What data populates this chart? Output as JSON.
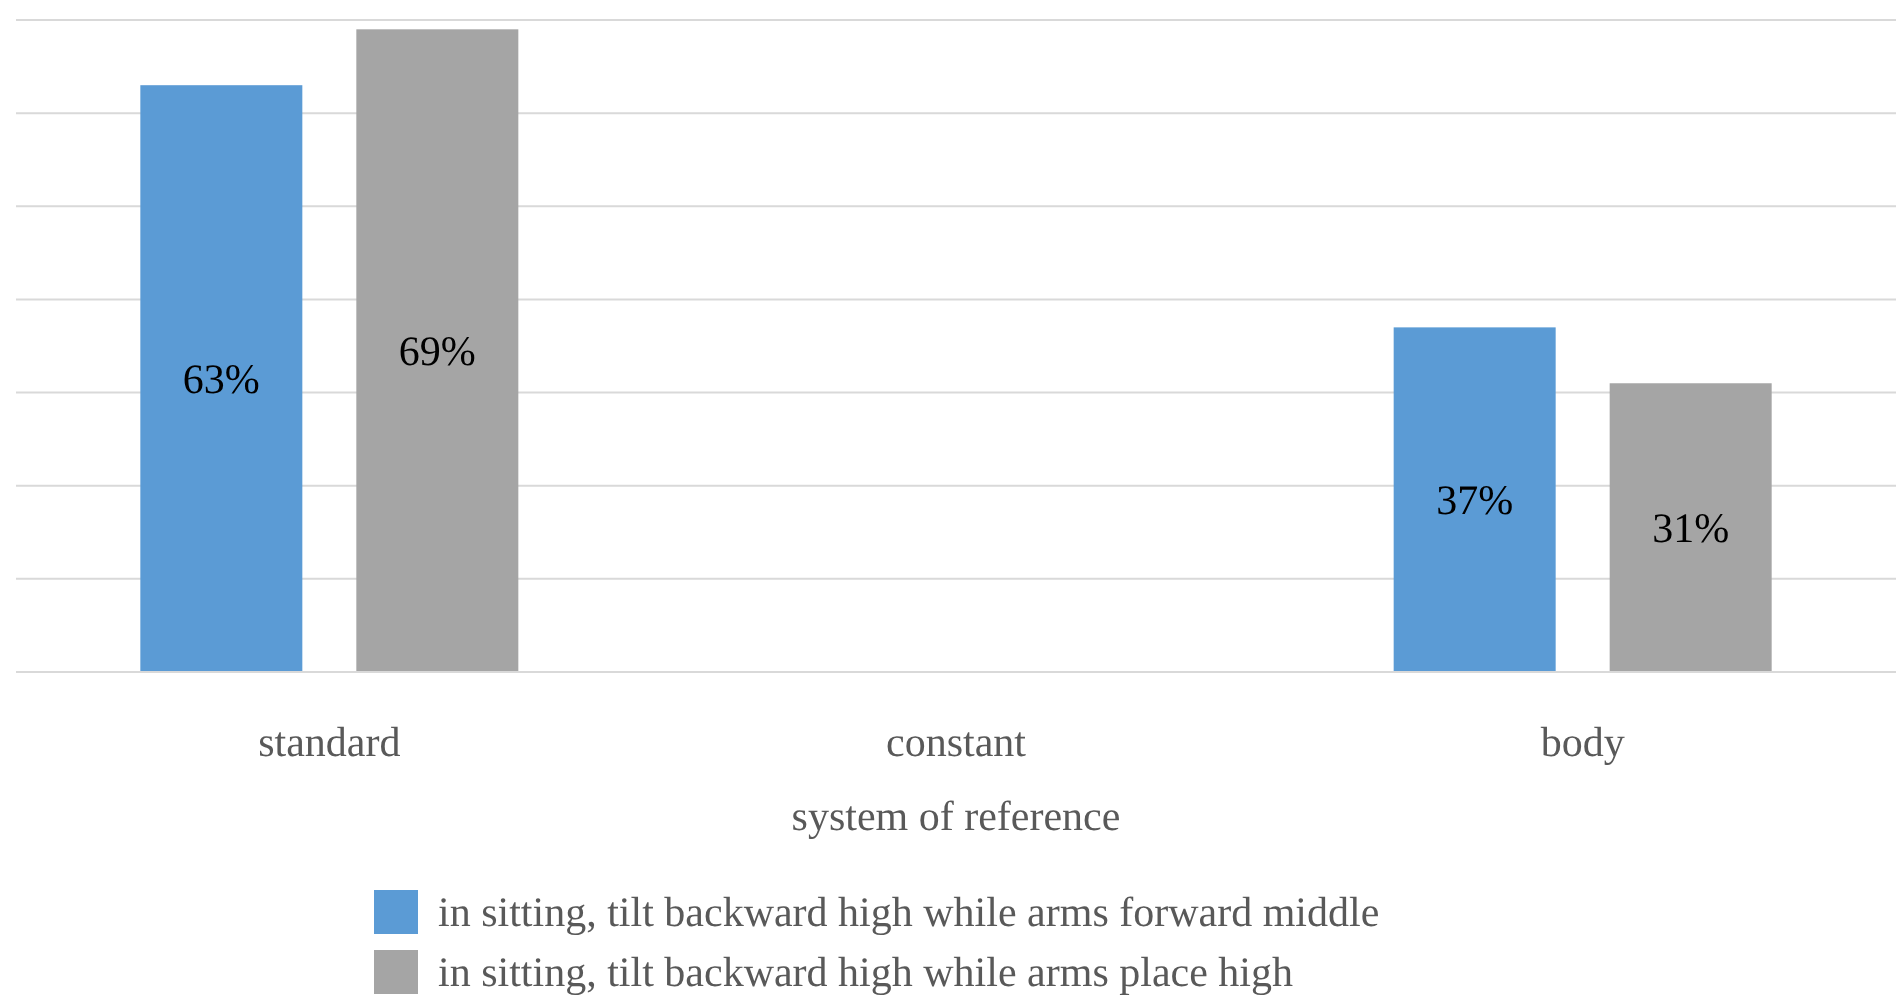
{
  "chart_data": {
    "type": "bar",
    "xlabel": "system of reference",
    "categories": [
      "standard",
      "constant",
      "body"
    ],
    "series": [
      {
        "name": "in sitting, tilt backward high while arms forward middle",
        "color": "#5b9bd5",
        "values": [
          63,
          null,
          37
        ],
        "value_labels": [
          "63%",
          null,
          "37%"
        ]
      },
      {
        "name": "in sitting, tilt backward high while arms place high",
        "color": "#a5a5a5",
        "values": [
          69,
          null,
          31
        ],
        "value_labels": [
          "69%",
          null,
          "31%"
        ]
      }
    ],
    "ylim": [
      0,
      70
    ],
    "yticks": [
      0,
      {
        "value": 10,
        "label": null
      },
      {
        "value": 20,
        "label": null
      },
      {
        "value": 30,
        "label": null
      },
      {
        "value": 40,
        "label": null
      },
      {
        "value": 50,
        "label": null
      },
      {
        "value": 60,
        "label": null
      },
      {
        "value": 70,
        "label": null
      }
    ],
    "tick_labels": "x",
    "grid": "y",
    "legend": "bottom"
  }
}
